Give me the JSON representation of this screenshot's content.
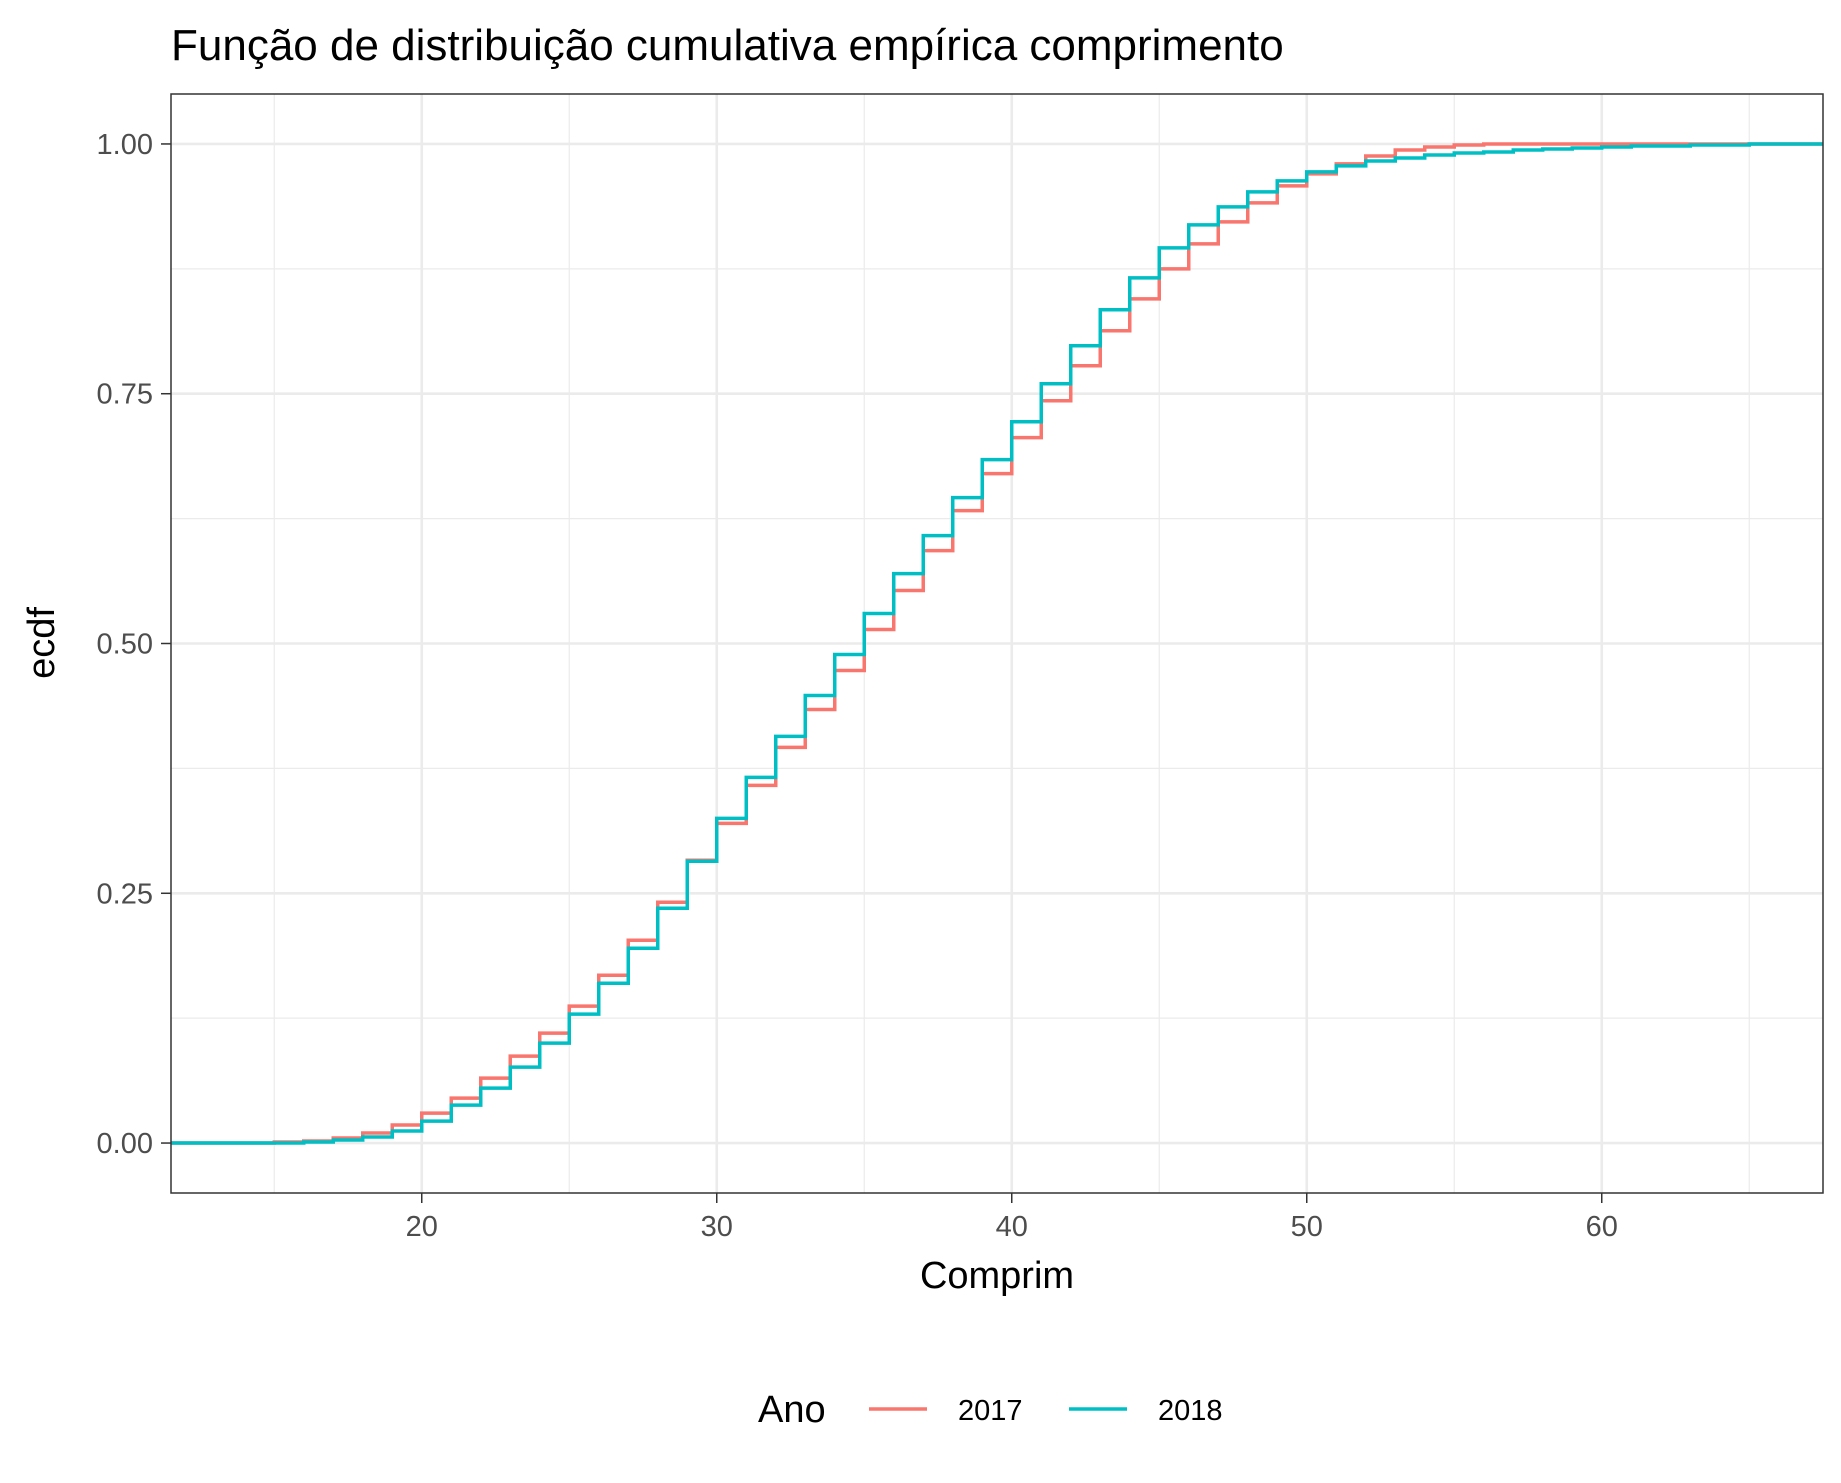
{
  "chart_data": {
    "type": "line",
    "step": true,
    "title": "Função de distribuição cumulativa empírica comprimento",
    "xlabel": "Comprim",
    "ylabel": "ecdf",
    "xlim": [
      11.5,
      67.5
    ],
    "ylim": [
      -0.05,
      1.05
    ],
    "xticks": [
      20,
      30,
      40,
      50,
      60
    ],
    "xtick_labels": [
      "20",
      "30",
      "40",
      "50",
      "60"
    ],
    "yticks": [
      0,
      0.25,
      0.5,
      0.75,
      1.0
    ],
    "ytick_labels": [
      "0.00",
      "0.25",
      "0.50",
      "0.75",
      "1.00"
    ],
    "grid": true,
    "legend": {
      "title": "Ano",
      "position": "bottom"
    },
    "x": [
      11,
      12,
      13,
      14,
      15,
      16,
      17,
      18,
      19,
      20,
      21,
      22,
      23,
      24,
      25,
      26,
      27,
      28,
      29,
      30,
      31,
      32,
      33,
      34,
      35,
      36,
      37,
      38,
      39,
      40,
      41,
      42,
      43,
      44,
      45,
      46,
      47,
      48,
      49,
      50,
      51,
      52,
      53,
      54,
      55,
      56,
      57,
      58,
      59,
      60,
      61,
      62,
      63,
      64,
      65,
      66,
      67,
      68
    ],
    "series": [
      {
        "name": "2017",
        "color": "#F8766D",
        "values": [
          0,
          0,
          0,
          0,
          0.001,
          0.002,
          0.005,
          0.01,
          0.018,
          0.03,
          0.045,
          0.065,
          0.087,
          0.11,
          0.137,
          0.168,
          0.203,
          0.241,
          0.283,
          0.32,
          0.358,
          0.396,
          0.434,
          0.473,
          0.514,
          0.553,
          0.593,
          0.633,
          0.67,
          0.706,
          0.743,
          0.778,
          0.813,
          0.845,
          0.875,
          0.9,
          0.922,
          0.941,
          0.958,
          0.97,
          0.98,
          0.988,
          0.994,
          0.997,
          0.999,
          1.0,
          1.0,
          1.0,
          1.0,
          1.0,
          1.0,
          1.0,
          1.0,
          1.0,
          1.0,
          1.0,
          1.0,
          1.0
        ]
      },
      {
        "name": "2018",
        "color": "#00BFC4",
        "values": [
          0,
          0,
          0,
          0,
          0,
          0.001,
          0.003,
          0.006,
          0.012,
          0.022,
          0.038,
          0.055,
          0.076,
          0.1,
          0.129,
          0.16,
          0.195,
          0.235,
          0.282,
          0.325,
          0.366,
          0.407,
          0.448,
          0.489,
          0.53,
          0.57,
          0.608,
          0.646,
          0.684,
          0.722,
          0.76,
          0.798,
          0.834,
          0.866,
          0.896,
          0.919,
          0.937,
          0.952,
          0.963,
          0.972,
          0.978,
          0.983,
          0.986,
          0.989,
          0.991,
          0.992,
          0.994,
          0.995,
          0.996,
          0.997,
          0.998,
          0.998,
          0.999,
          0.999,
          1.0,
          1.0,
          1.0,
          1.0
        ]
      }
    ]
  }
}
